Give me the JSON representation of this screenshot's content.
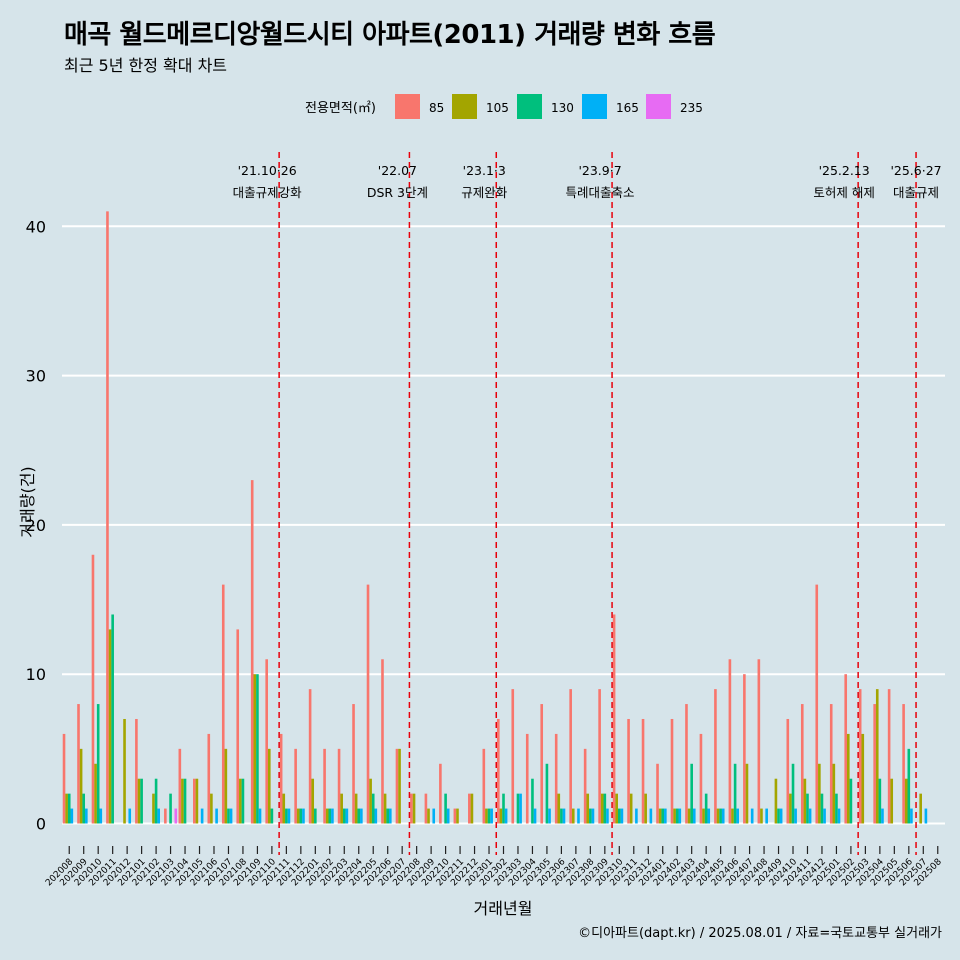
{
  "title": "매곡 월드메르디앙월드시티 아파트(2011) 거래량 변화 흐름",
  "subtitle": "최근 5년 한정 확대 차트",
  "caption": "©디아파트(dapt.kr) / 2025.08.01 / 자료=국토교통부 실거래가",
  "chart_data": {
    "type": "bar",
    "title": "매곡 월드메르디앙월드시티 아파트(2011) 거래량 변화 흐름",
    "subtitle": "최근 5년 한정 확대 차트",
    "xlabel": "거래년월",
    "ylabel": "거래량(건)",
    "ylim": [
      0,
      44
    ],
    "yticks": [
      0,
      10,
      20,
      30,
      40
    ],
    "grid": true,
    "legend_title": "전용면적(㎡)",
    "legend_position": "top",
    "colors": {
      "85": "#f8766d",
      "105": "#a3a500",
      "130": "#00bf7d",
      "165": "#00b0f6",
      "235": "#e76bf3"
    },
    "categories": [
      "202008",
      "202009",
      "202010",
      "202011",
      "202012",
      "202101",
      "202102",
      "202103",
      "202104",
      "202105",
      "202106",
      "202107",
      "202108",
      "202109",
      "202110",
      "202111",
      "202112",
      "202201",
      "202202",
      "202203",
      "202204",
      "202205",
      "202206",
      "202207",
      "202208",
      "202209",
      "202210",
      "202211",
      "202212",
      "202301",
      "202302",
      "202303",
      "202304",
      "202305",
      "202306",
      "202307",
      "202308",
      "202309",
      "202310",
      "202311",
      "202312",
      "202401",
      "202402",
      "202403",
      "202404",
      "202405",
      "202406",
      "202407",
      "202408",
      "202409",
      "202410",
      "202411",
      "202412",
      "202501",
      "202502",
      "202503",
      "202504",
      "202505",
      "202506",
      "202507",
      "202508"
    ],
    "series": [
      {
        "name": "85",
        "values": [
          6,
          8,
          18,
          41,
          0,
          7,
          0,
          1,
          5,
          3,
          6,
          16,
          13,
          23,
          11,
          6,
          5,
          9,
          5,
          5,
          8,
          16,
          11,
          5,
          2,
          2,
          4,
          1,
          2,
          5,
          7,
          9,
          6,
          8,
          6,
          9,
          5,
          9,
          14,
          7,
          7,
          4,
          7,
          8,
          6,
          9,
          11,
          10,
          11,
          0,
          7,
          8,
          16,
          8,
          10,
          9,
          8,
          9,
          8,
          0,
          0
        ]
      },
      {
        "name": "105",
        "values": [
          2,
          5,
          4,
          13,
          7,
          3,
          2,
          0,
          3,
          3,
          2,
          5,
          3,
          10,
          5,
          2,
          1,
          3,
          1,
          2,
          2,
          3,
          2,
          5,
          2,
          1,
          0,
          1,
          2,
          1,
          1,
          0,
          0,
          0,
          2,
          1,
          2,
          2,
          2,
          2,
          2,
          1,
          1,
          1,
          1,
          1,
          1,
          4,
          1,
          3,
          2,
          3,
          4,
          4,
          6,
          6,
          9,
          3,
          3,
          2,
          0
        ]
      },
      {
        "name": "130",
        "values": [
          2,
          2,
          8,
          14,
          0,
          3,
          3,
          2,
          3,
          0,
          0,
          1,
          3,
          10,
          1,
          1,
          1,
          1,
          1,
          1,
          1,
          2,
          1,
          0,
          0,
          0,
          2,
          0,
          0,
          1,
          2,
          2,
          3,
          4,
          1,
          0,
          1,
          2,
          1,
          0,
          0,
          1,
          1,
          4,
          2,
          1,
          4,
          0,
          0,
          1,
          4,
          2,
          2,
          2,
          3,
          0,
          3,
          0,
          5,
          0,
          0
        ]
      },
      {
        "name": "165",
        "values": [
          1,
          1,
          1,
          0,
          1,
          0,
          1,
          0,
          0,
          1,
          1,
          1,
          0,
          1,
          0,
          1,
          1,
          0,
          1,
          1,
          1,
          1,
          1,
          0,
          0,
          1,
          1,
          0,
          0,
          1,
          1,
          2,
          1,
          1,
          1,
          1,
          1,
          1,
          1,
          1,
          1,
          1,
          1,
          1,
          1,
          1,
          1,
          1,
          1,
          1,
          1,
          1,
          1,
          1,
          0,
          0,
          1,
          0,
          1,
          1,
          0
        ]
      },
      {
        "name": "235",
        "values": [
          0,
          0,
          0,
          0,
          0,
          0,
          0,
          1,
          0,
          0,
          0,
          0,
          0,
          0,
          0,
          0,
          0,
          0,
          0,
          0,
          0,
          0,
          0,
          0,
          0,
          0,
          0,
          0,
          0,
          0,
          0,
          0,
          0,
          0,
          0,
          0,
          0,
          0,
          0,
          0,
          0,
          0,
          0,
          0,
          0,
          0,
          0,
          0,
          0,
          0,
          0,
          0,
          0,
          0,
          0,
          0,
          0,
          0,
          0,
          0,
          0
        ]
      }
    ],
    "annotations": [
      {
        "at": "202110",
        "date": "'21.10·26",
        "label": "대출규제강화"
      },
      {
        "at": "202207",
        "date": "'22.07",
        "label": "DSR 3단계"
      },
      {
        "at": "202301",
        "date": "'23.1·3",
        "label": "규제완화"
      },
      {
        "at": "202309",
        "date": "'23.9·7",
        "label": "특례대출축소"
      },
      {
        "at": "202502",
        "date": "'25.2.13",
        "label": "토허제 해제"
      },
      {
        "at": "202506",
        "date": "'25.6·27",
        "label": "대출규제"
      }
    ]
  }
}
